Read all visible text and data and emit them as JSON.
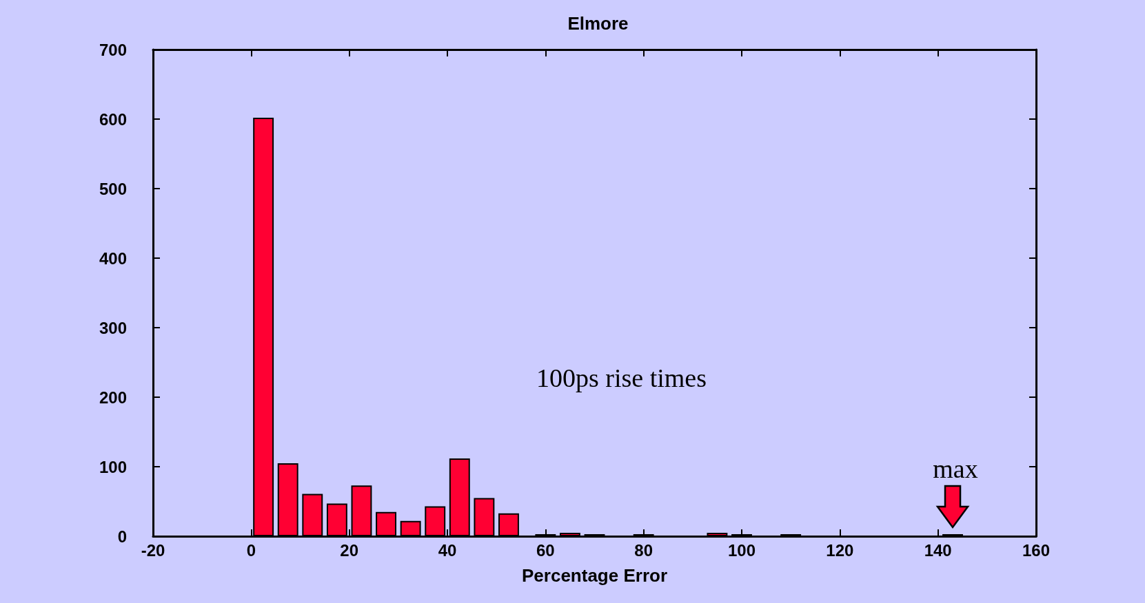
{
  "chart_data": {
    "type": "bar",
    "title": "Elmore",
    "xlabel": "Percentage Error",
    "x": [
      2.5,
      7.5,
      12.5,
      17.5,
      22.5,
      27.5,
      32.5,
      37.5,
      42.5,
      47.5,
      52.5,
      60,
      65,
      70,
      80,
      95,
      100,
      110,
      143
    ],
    "values": [
      602,
      105,
      61,
      47,
      73,
      35,
      22,
      43,
      112,
      55,
      33,
      3,
      5,
      3,
      3,
      5,
      3,
      3,
      3
    ],
    "color": "#ff0033",
    "xlim": [
      -20,
      160
    ],
    "xticks": [
      -20,
      0,
      20,
      40,
      60,
      80,
      100,
      120,
      140,
      160
    ],
    "ylim": [
      0,
      700
    ],
    "yticks": [
      0,
      100,
      200,
      300,
      400,
      500,
      600,
      700
    ],
    "grid": false,
    "annotations": [
      "100ps rise times",
      {
        "text": "max",
        "x": 143,
        "y": 3
      }
    ]
  }
}
